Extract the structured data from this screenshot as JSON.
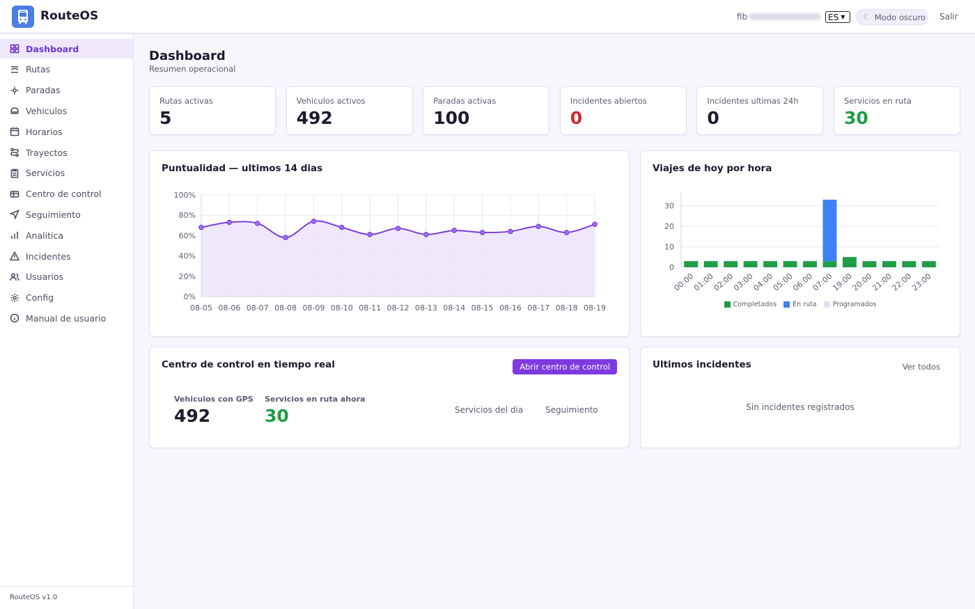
{
  "header": {
    "app_title": "RouteOS",
    "user_prefix": "fib",
    "language": "ES",
    "dark_mode_label": "Modo oscuro",
    "logout_label": "Salir"
  },
  "sidebar": {
    "items": [
      {
        "label": "Dashboard",
        "icon": "grid-icon",
        "active": true
      },
      {
        "label": "Rutas",
        "icon": "route-icon"
      },
      {
        "label": "Paradas",
        "icon": "stop-icon"
      },
      {
        "label": "Vehiculos",
        "icon": "vehicle-icon"
      },
      {
        "label": "Horarios",
        "icon": "calendar-icon"
      },
      {
        "label": "Trayectos",
        "icon": "trajectory-icon"
      },
      {
        "label": "Servicios",
        "icon": "clipboard-icon"
      },
      {
        "label": "Centro de control",
        "icon": "control-icon"
      },
      {
        "label": "Seguimiento",
        "icon": "navigation-icon"
      },
      {
        "label": "Analitica",
        "icon": "bar-chart-icon"
      },
      {
        "label": "Incidentes",
        "icon": "warning-icon"
      },
      {
        "label": "Usuarios",
        "icon": "users-icon"
      },
      {
        "label": "Config",
        "icon": "gear-icon"
      },
      {
        "label": "Manual de usuario",
        "icon": "info-icon"
      }
    ],
    "footer": "RouteOS v1.0"
  },
  "page": {
    "title": "Dashboard",
    "subtitle": "Resumen operacional"
  },
  "kpis": [
    {
      "label": "Rutas activas",
      "value": "5",
      "color": "#1b1b2f"
    },
    {
      "label": "Vehiculos activos",
      "value": "492",
      "color": "#1b1b2f"
    },
    {
      "label": "Paradas activas",
      "value": "100",
      "color": "#1b1b2f"
    },
    {
      "label": "Incidentes abiertos",
      "value": "0",
      "color": "#d42a2a"
    },
    {
      "label": "Incidentes ultimas 24h",
      "value": "0",
      "color": "#1b1b2f"
    },
    {
      "label": "Servicios en ruta",
      "value": "30",
      "color": "#1f9d45"
    }
  ],
  "punctuality": {
    "title": "Puntualidad — ultimos 14 dias"
  },
  "trips": {
    "title": "Viajes de hoy por hora"
  },
  "control": {
    "title": "Centro de control en tiempo real",
    "open_button": "Abrir centro de control",
    "gps_label": "Vehiculos con GPS",
    "gps_value": "492",
    "route_label": "Servicios en ruta ahora",
    "route_value": "30",
    "link_services": "Servicios del dia",
    "link_tracking": "Seguimiento"
  },
  "incidents": {
    "title": "Ultimos incidentes",
    "view_all": "Ver todos",
    "empty": "Sin incidentes registrados"
  },
  "chart_data": [
    {
      "type": "area",
      "title": "Puntualidad — ultimos 14 dias",
      "x": [
        "08-05",
        "08-06",
        "08-07",
        "08-08",
        "08-09",
        "08-10",
        "08-11",
        "08-12",
        "08-13",
        "08-14",
        "08-15",
        "08-16",
        "08-17",
        "08-18",
        "08-19"
      ],
      "values": [
        68,
        73,
        72,
        58,
        74,
        68,
        61,
        67,
        61,
        65,
        63,
        64,
        69,
        63,
        71
      ],
      "ylim": [
        0,
        100
      ],
      "yticks": [
        "0%",
        "20%",
        "40%",
        "60%",
        "80%",
        "100%"
      ],
      "color": "#7b3ddb",
      "fill": "#ece4fb",
      "grid": true
    },
    {
      "type": "bar",
      "title": "Viajes de hoy por hora",
      "categories": [
        "00:00",
        "01:00",
        "02:00",
        "03:00",
        "04:00",
        "05:00",
        "06:00",
        "07:00",
        "19:00",
        "20:00",
        "21:00",
        "22:00",
        "23:00"
      ],
      "series": [
        {
          "name": "Completados",
          "color": "#1f9d45",
          "values": [
            3,
            3,
            3,
            3,
            3,
            3,
            3,
            3,
            5,
            3,
            3,
            3,
            3
          ]
        },
        {
          "name": "En ruta",
          "color": "#3b82f6",
          "values": [
            0,
            0,
            0,
            0,
            0,
            0,
            0,
            30,
            0,
            0,
            0,
            0,
            0
          ]
        },
        {
          "name": "Programados",
          "color": "#e4e1f7",
          "values": [
            0,
            0,
            0,
            0,
            0,
            0,
            0,
            0,
            0,
            0,
            0,
            0,
            0
          ]
        }
      ],
      "stacked": true,
      "ylim": [
        0,
        35
      ],
      "yticks": [
        "0",
        "10",
        "20",
        "30"
      ],
      "legend": "bottom",
      "grid": true
    }
  ]
}
